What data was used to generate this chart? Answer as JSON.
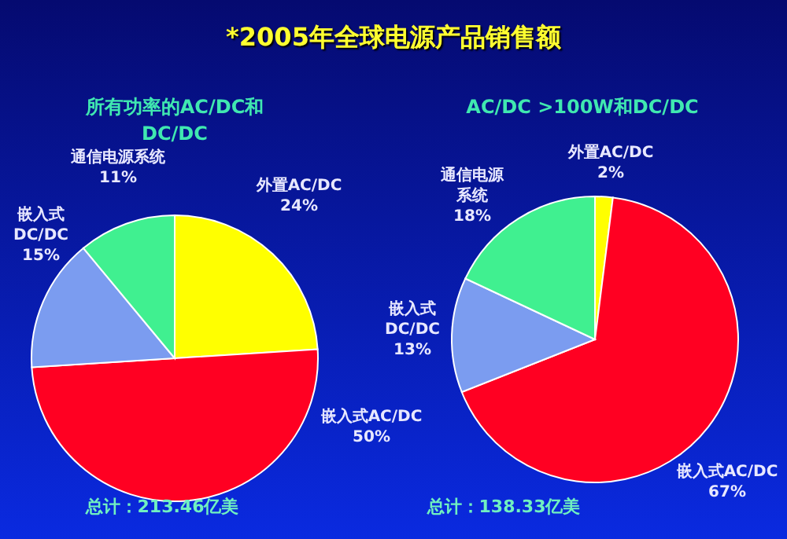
{
  "chart_data": [
    {
      "type": "pie",
      "title": "*2005年全球电源产品销售额",
      "subtitle": "所有功率的AC/DC和DC/DC",
      "categories": [
        "外置AC/DC",
        "嵌入式AC/DC",
        "嵌入式DC/DC",
        "通信电源系统"
      ],
      "values": [
        24,
        50,
        15,
        11
      ],
      "value_labels": [
        "24%",
        "50%",
        "15%",
        "11%"
      ],
      "colors": [
        "#ffff00",
        "#ff0022",
        "#7b9cf0",
        "#40f090"
      ],
      "annotations": [
        "总计：213.46亿美"
      ]
    },
    {
      "type": "pie",
      "title": "AC/DC >100W和DC/DC",
      "categories": [
        "外置AC/DC",
        "嵌入式AC/DC",
        "嵌入式DC/DC",
        "通信电源系统"
      ],
      "values": [
        2,
        67,
        13,
        18
      ],
      "value_labels": [
        "2%",
        "67%",
        "13%",
        "18%"
      ],
      "colors": [
        "#ffff00",
        "#ff0022",
        "#7b9cf0",
        "#40f090"
      ],
      "annotations": [
        "总计：138.33亿美"
      ]
    }
  ]
}
